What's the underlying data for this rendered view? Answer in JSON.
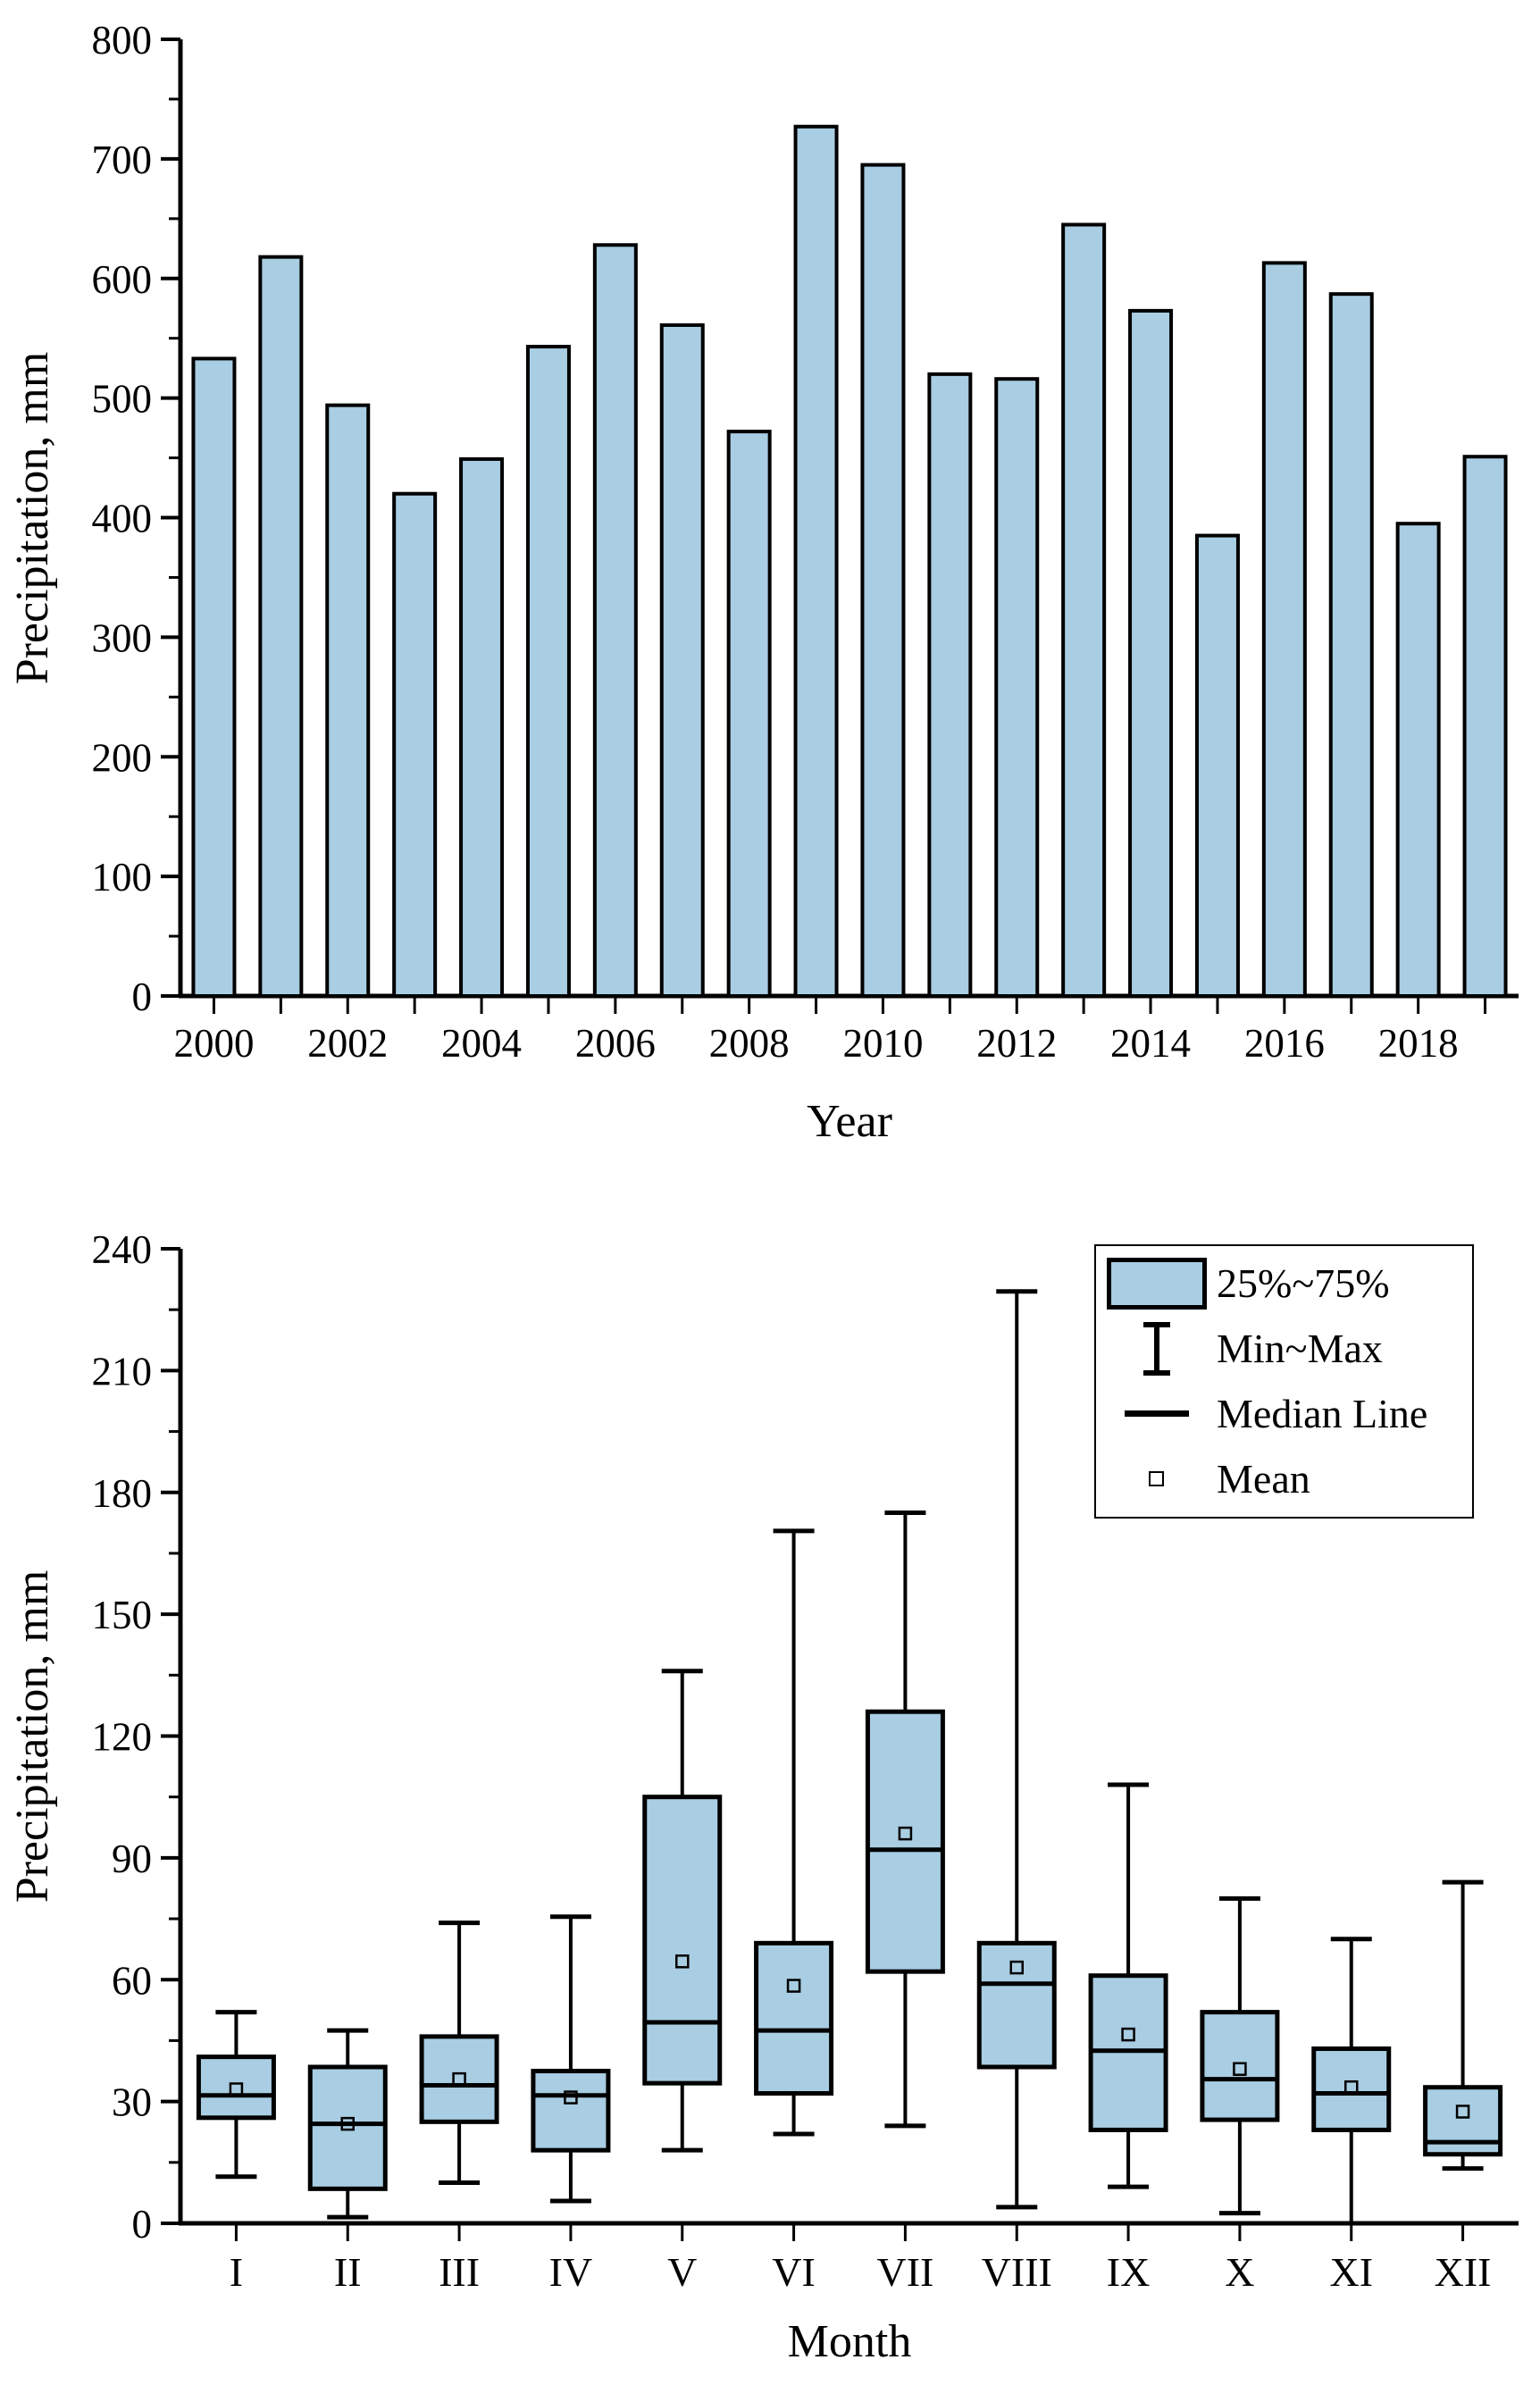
{
  "figure": {
    "background": "#ffffff",
    "box_fill": "#a9cde2",
    "line_color": "#000000"
  },
  "legend": {
    "items": [
      {
        "icon": "box-swatch-icon",
        "label": "25%~75%"
      },
      {
        "icon": "min-max-whisker-icon",
        "label": "Min~Max"
      },
      {
        "icon": "median-line-icon",
        "label": "Median Line"
      },
      {
        "icon": "mean-square-icon",
        "label": "Mean"
      }
    ]
  },
  "chart_data": [
    {
      "type": "bar",
      "title": "",
      "xlabel": "Year",
      "ylabel": "Precipitation, mm",
      "categories": [
        2000,
        2001,
        2002,
        2003,
        2004,
        2005,
        2006,
        2007,
        2008,
        2009,
        2010,
        2011,
        2012,
        2013,
        2014,
        2015,
        2016,
        2017,
        2018,
        2019
      ],
      "values": [
        533,
        618,
        494,
        420,
        449,
        543,
        628,
        561,
        472,
        727,
        695,
        520,
        516,
        645,
        573,
        385,
        613,
        587,
        395,
        451
      ],
      "ylim": [
        0,
        800
      ],
      "ytick_step": 100,
      "y_minor_step": 50,
      "xtick_label_every": 2,
      "grid": false,
      "bar_color": "#a9cde2",
      "bar_border": "#000000"
    },
    {
      "type": "boxplot",
      "title": "",
      "xlabel": "Month",
      "ylabel": "Precipitation, mm",
      "categories": [
        "I",
        "II",
        "III",
        "IV",
        "V",
        "VI",
        "VII",
        "VIII",
        "IX",
        "X",
        "XI",
        "XII"
      ],
      "ylim": [
        0,
        240
      ],
      "ytick_step": 30,
      "y_minor_step": 15,
      "grid": false,
      "legend_position": "top-right",
      "box_fill": "#a9cde2",
      "boxes": [
        {
          "month": "I",
          "min": 11.5,
          "q1": 26,
          "median": 31.5,
          "mean": 33,
          "q3": 41,
          "max": 52
        },
        {
          "month": "II",
          "min": 1.5,
          "q1": 8.5,
          "median": 24.5,
          "mean": 24.5,
          "q3": 38.5,
          "max": 47.5
        },
        {
          "month": "III",
          "min": 10,
          "q1": 25,
          "median": 34,
          "mean": 35.5,
          "q3": 46,
          "max": 74
        },
        {
          "month": "IV",
          "min": 5.5,
          "q1": 18,
          "median": 31.5,
          "mean": 31,
          "q3": 37.5,
          "max": 75.5
        },
        {
          "month": "V",
          "min": 18,
          "q1": 34.5,
          "median": 49.5,
          "mean": 64.5,
          "q3": 105,
          "max": 136
        },
        {
          "month": "VI",
          "min": 22,
          "q1": 32,
          "median": 47.5,
          "mean": 58.5,
          "q3": 69,
          "max": 170.5
        },
        {
          "month": "VII",
          "min": 24,
          "q1": 62,
          "median": 92,
          "mean": 96,
          "q3": 126,
          "max": 175
        },
        {
          "month": "VIII",
          "min": 4,
          "q1": 38.5,
          "median": 59,
          "mean": 63,
          "q3": 69,
          "max": 229.5
        },
        {
          "month": "IX",
          "min": 9,
          "q1": 23,
          "median": 42.5,
          "mean": 46.5,
          "q3": 61,
          "max": 108
        },
        {
          "month": "X",
          "min": 2.5,
          "q1": 25.5,
          "median": 35.5,
          "mean": 38,
          "q3": 52,
          "max": 80
        },
        {
          "month": "XI",
          "min": 0,
          "q1": 23,
          "median": 32,
          "mean": 33.5,
          "q3": 43,
          "max": 70
        },
        {
          "month": "XII",
          "min": 13.5,
          "q1": 17,
          "median": 20,
          "mean": 27.5,
          "q3": 33.5,
          "max": 84
        }
      ]
    }
  ]
}
